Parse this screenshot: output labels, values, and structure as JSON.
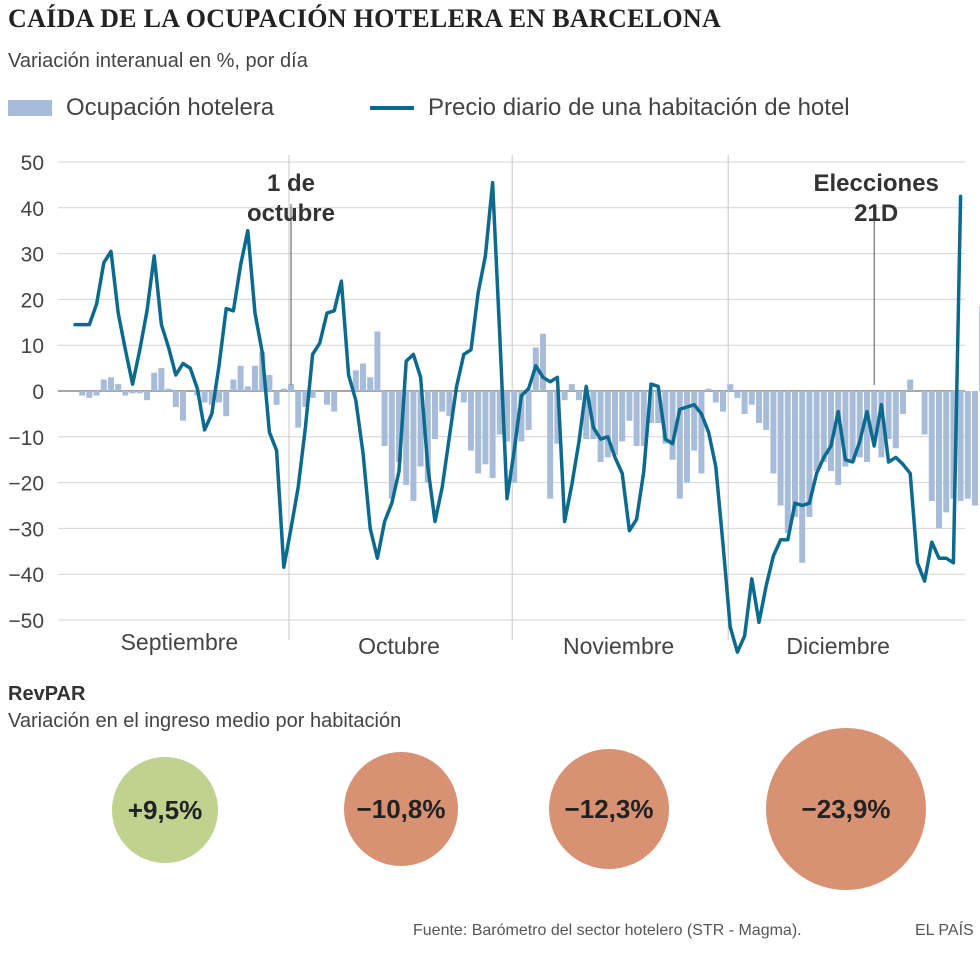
{
  "title": "CAÍDA DE LA OCUPACIÓN HOTELERA EN BARCELONA",
  "subtitle": "Variación interanual en %, por día",
  "legend": {
    "occupancy": "Ocupación hotelera",
    "price": "Precio diario de una habitación de hotel"
  },
  "colors": {
    "bar": "#a6bcd9",
    "line": "#0d6a8f",
    "grid": "#d4d4d4",
    "positive": "#bfd38f",
    "negative": "#d89173"
  },
  "chart_data": {
    "type": "bar+line",
    "ylim": [
      -50,
      50
    ],
    "yticks": [
      50,
      40,
      30,
      20,
      10,
      0,
      -10,
      -20,
      -30,
      -40,
      -50
    ],
    "ytick_labels": [
      "50",
      "40",
      "30",
      "20",
      "10",
      "0",
      "−10",
      "−20",
      "−30",
      "−40",
      "−50"
    ],
    "months": [
      "Septiembre",
      "Octubre",
      "Noviembre",
      "Diciembre"
    ],
    "month_days": [
      30,
      31,
      30,
      31
    ],
    "annotations": [
      {
        "label_lines": [
          "1 de",
          "octubre"
        ],
        "day_index": 30
      },
      {
        "label_lines": [
          "Elecciones",
          "21D"
        ],
        "day_index": 111
      }
    ],
    "series": [
      {
        "name": "Ocupación hotelera",
        "type": "bar",
        "values": [
          0,
          -1,
          -1.5,
          -1,
          2.5,
          3,
          1.5,
          -1,
          -0.5,
          -0.5,
          -2,
          4,
          5,
          0.5,
          -3.5,
          -6.5,
          0,
          -1,
          -2.5,
          -3,
          -2.5,
          -5.5,
          2.5,
          5.5,
          1,
          5.5,
          8.5,
          3.5,
          -3,
          0.5,
          1.5,
          -8,
          -3.5,
          -1.5,
          0,
          -3,
          -4.5,
          0,
          0,
          4.5,
          6,
          3,
          13,
          -12,
          -23.5,
          -15.5,
          -20.5,
          -24,
          -16.5,
          -20,
          -10.5,
          -4.5,
          -5.5,
          0,
          -2.5,
          -13,
          -18,
          -16,
          -19,
          -9.5,
          -11,
          -20,
          -11,
          -8.5,
          9.5,
          12.5,
          -23.5,
          -11.5,
          -2,
          1.5,
          -2,
          -10.5,
          -10.5,
          -15.5,
          -14.5,
          -14,
          -11,
          -6.5,
          -12,
          -12,
          -7,
          -7,
          -11.5,
          -15,
          -23.5,
          -20,
          -13,
          -18,
          0.5,
          -2.5,
          -4.5,
          1.5,
          -1.5,
          -5,
          -3,
          -7,
          -8.5,
          -18,
          -25,
          -31,
          -27.5,
          -37.5,
          -27.5,
          -17.5,
          -15.5,
          -17.5,
          -20.5,
          -16.5,
          -15.5,
          -14.5,
          -15.5,
          -10,
          -14.5,
          -10.5,
          -12.5,
          -5,
          2.5,
          0,
          -9.5,
          -24,
          -30,
          -26.5,
          -23.5,
          -24,
          -23.5,
          -25,
          18.5
        ]
      },
      {
        "name": "Precio diario de una habitación de hotel",
        "type": "line",
        "values": [
          14.5,
          14.5,
          14.5,
          19,
          28,
          30.5,
          17,
          9,
          1.5,
          9,
          17.5,
          29.5,
          14.5,
          9.5,
          3.5,
          6,
          5,
          0.5,
          -8.5,
          -5,
          5.5,
          18,
          17.5,
          27.5,
          35,
          17,
          8.5,
          -9,
          -13,
          -38.5,
          -30,
          -21,
          -8,
          8,
          10.5,
          17,
          17.5,
          24,
          3.5,
          -2,
          -13.5,
          -30,
          -36.5,
          -28.5,
          -24.5,
          -17.5,
          6.5,
          8,
          3,
          -16.5,
          -28.5,
          -21,
          -10,
          1,
          8,
          9,
          21.5,
          29.5,
          45.5,
          12,
          -23.5,
          -13,
          -1,
          0.5,
          5.5,
          3,
          2,
          3,
          -28.5,
          -20.5,
          -11,
          1,
          -8,
          -10.5,
          -10,
          -14.5,
          -18,
          -30.5,
          -28,
          -17.5,
          1.5,
          1,
          -10.5,
          -11.5,
          -4,
          -3.5,
          -3,
          -5,
          -9,
          -16.5,
          -33.5,
          -51.5,
          -57,
          -53.5,
          -41,
          -50.5,
          -42.5,
          -36,
          -32.5,
          -32.5,
          -24.5,
          -25,
          -24.5,
          -18,
          -14.5,
          -12,
          -4.5,
          -15,
          -15.5,
          -11,
          -4.5,
          -12,
          -3,
          -15.5,
          -14.5,
          -16,
          -18,
          -37.5,
          -41.5,
          -33,
          -36.5,
          -36.5,
          -37.5,
          42.5
        ]
      }
    ]
  },
  "revpar": {
    "title": "RevPAR",
    "subtitle": "Variación en el ingreso medio por habitación",
    "values": [
      {
        "label": "+9,5%",
        "value": 9.5
      },
      {
        "label": "−10,8%",
        "value": -10.8
      },
      {
        "label": "−12,3%",
        "value": -12.3
      },
      {
        "label": "−23,9%",
        "value": -23.9
      }
    ]
  },
  "footer": {
    "source": "Fuente: Barómetro del sector hotelero (STR - Magma).",
    "brand": "EL PAÍS"
  }
}
